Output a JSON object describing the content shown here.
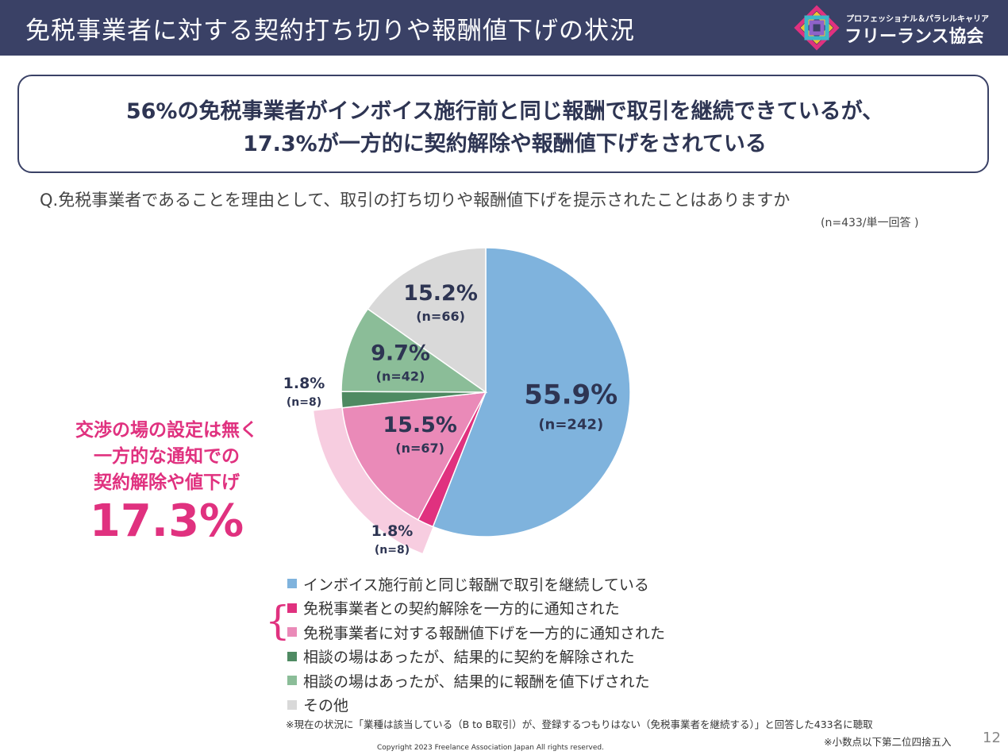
{
  "header": {
    "title": "免税事業者に対する契約打ち切りや報酬値下げの状況",
    "logo_subtitle": "プロフェッショナル＆パラレルキャリア",
    "logo_name": "フリーランス協会"
  },
  "headline": {
    "line1": "56%の免税事業者がインボイス施行前と同じ報酬で取引を継続できているが、",
    "line2": "17.3%が一方的に契約解除や報酬値下げをされている"
  },
  "question": "Q.免税事業者であることを理由として、取引の打ち切りや報酬値下げを提示されたことはありますか",
  "sample_note": "(n=433/単一回答 )",
  "callout": {
    "line1": "交渉の場の設定は無く",
    "line2": "一方的な通知での",
    "line3": "契約解除や値下げ",
    "value": "17.3%"
  },
  "colors": {
    "header_bg": "#3a4166",
    "accent": "#e0317f",
    "highlight": "#f7cde0"
  },
  "chart_data": {
    "type": "pie",
    "total_n": 433,
    "start": "12 o'clock",
    "direction": "clockwise",
    "slices": [
      {
        "label": "インボイス施行前と同じ報酬で取引を継続している",
        "percent": 55.9,
        "pct_text": "55.9%",
        "n_text": "(n=242)",
        "n": 242,
        "color": "#7fb3dd"
      },
      {
        "label": "免税事業者との契約解除を一方的に通知された",
        "percent": 1.8,
        "pct_text": "1.8%",
        "n_text": "(n=8)",
        "n": 8,
        "color": "#e0317f"
      },
      {
        "label": "免税事業者に対する報酬値下げを一方的に通知された",
        "percent": 15.5,
        "pct_text": "15.5%",
        "n_text": "(n=67)",
        "n": 67,
        "color": "#ea8ab8"
      },
      {
        "label": "相談の場はあったが、結果的に契約を解除された",
        "percent": 1.8,
        "pct_text": "1.8%",
        "n_text": "(n=8)",
        "n": 8,
        "color": "#4e8a62"
      },
      {
        "label": "相談の場はあったが、結果的に報酬を値下げされた",
        "percent": 9.7,
        "pct_text": "9.7%",
        "n_text": "(n=42)",
        "n": 42,
        "color": "#8bbd98"
      },
      {
        "label": "その他",
        "percent": 15.2,
        "pct_text": "15.2%",
        "n_text": "(n=66)",
        "n": 66,
        "color": "#d9d9d9"
      }
    ],
    "highlight_group": {
      "slices": [
        1,
        2
      ],
      "percent": 17.3
    }
  },
  "footnote": "※現在の状況に「業種は該当している（B to B取引）が、登録するつもりはない（免税事業者を継続する）」と回答した433名に聴取",
  "rounding_note": "※小数点以下第二位四捨五入",
  "copyright": "Copyright 2023 Freelance Association Japan  All rights reserved.",
  "page_number": "12"
}
